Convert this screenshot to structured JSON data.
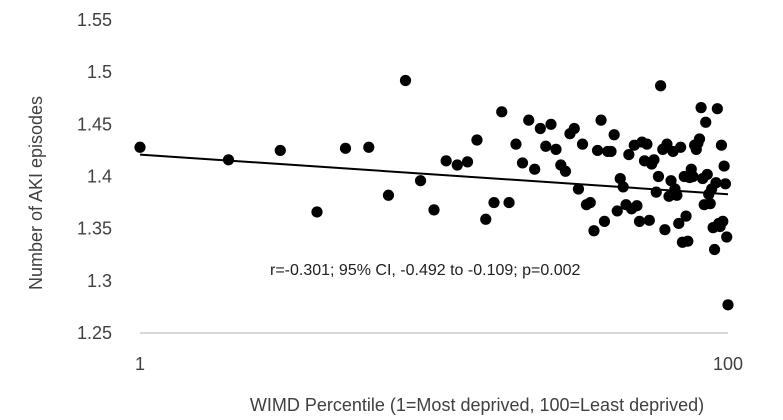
{
  "chart_data": {
    "type": "scatter",
    "xlabel": "WIMD Percentile (1=Most deprived, 100=Least deprived)",
    "ylabel": "Number of AKI episodes",
    "x_scale": "log",
    "xlim": [
      1,
      100
    ],
    "ylim": [
      1.25,
      1.55
    ],
    "x_ticks": [
      1,
      100
    ],
    "x_tick_labels": [
      "1",
      "100"
    ],
    "y_ticks": [
      1.25,
      1.3,
      1.35,
      1.4,
      1.45,
      1.5,
      1.55
    ],
    "y_tick_labels": [
      "1.25",
      "1.3",
      "1.35",
      "1.4",
      "1.45",
      "1.5",
      "1.55"
    ],
    "grid": false,
    "legend": "none",
    "annotation": "r=-0.301; 95% CI, -0.492 to -0.109; p=0.002",
    "trendline": {
      "x": [
        1,
        100
      ],
      "y": [
        1.421,
        1.383
      ]
    },
    "colors": {
      "points": "#000000",
      "axis": "#bfbfbf",
      "trendline": "#000000"
    },
    "x": [
      1,
      2,
      3,
      4,
      5,
      6,
      7,
      8,
      9,
      10,
      11,
      12,
      13,
      14,
      15,
      16,
      17,
      18,
      19,
      20,
      21,
      22,
      23,
      24,
      25,
      26,
      27,
      28,
      29,
      30,
      31,
      32,
      33,
      34,
      35,
      36,
      37,
      38,
      39,
      40,
      41,
      42,
      43,
      44,
      45,
      46,
      47,
      48,
      49,
      50,
      51,
      52,
      53,
      54,
      55,
      56,
      57,
      58,
      59,
      60,
      61,
      62,
      63,
      64,
      65,
      66,
      67,
      68,
      69,
      70,
      71,
      72,
      73,
      74,
      75,
      76,
      77,
      78,
      79,
      80,
      81,
      82,
      83,
      84,
      85,
      86,
      87,
      88,
      89,
      90,
      91,
      92,
      93,
      94,
      95,
      96,
      97,
      98,
      99,
      100
    ],
    "y": [
      1.428,
      1.416,
      1.425,
      1.366,
      1.427,
      1.428,
      1.382,
      1.492,
      1.396,
      1.368,
      1.415,
      1.411,
      1.414,
      1.435,
      1.359,
      1.375,
      1.462,
      1.375,
      1.431,
      1.413,
      1.454,
      1.407,
      1.446,
      1.429,
      1.45,
      1.426,
      1.411,
      1.405,
      1.441,
      1.446,
      1.388,
      1.431,
      1.373,
      1.375,
      1.348,
      1.425,
      1.454,
      1.357,
      1.424,
      1.424,
      1.44,
      1.367,
      1.398,
      1.39,
      1.373,
      1.421,
      1.369,
      1.43,
      1.372,
      1.357,
      1.433,
      1.415,
      1.431,
      1.358,
      1.412,
      1.416,
      1.385,
      1.4,
      1.487,
      1.426,
      1.349,
      1.431,
      1.381,
      1.396,
      1.424,
      1.388,
      1.382,
      1.355,
      1.428,
      1.337,
      1.4,
      1.362,
      1.338,
      1.399,
      1.407,
      1.4,
      1.43,
      1.426,
      1.432,
      1.436,
      1.466,
      1.398,
      1.373,
      1.452,
      1.402,
      1.383,
      1.374,
      1.388,
      1.351,
      1.33,
      1.394,
      1.465,
      1.355,
      1.352,
      1.43,
      1.357,
      1.41,
      1.393,
      1.342,
      1.277
    ]
  }
}
